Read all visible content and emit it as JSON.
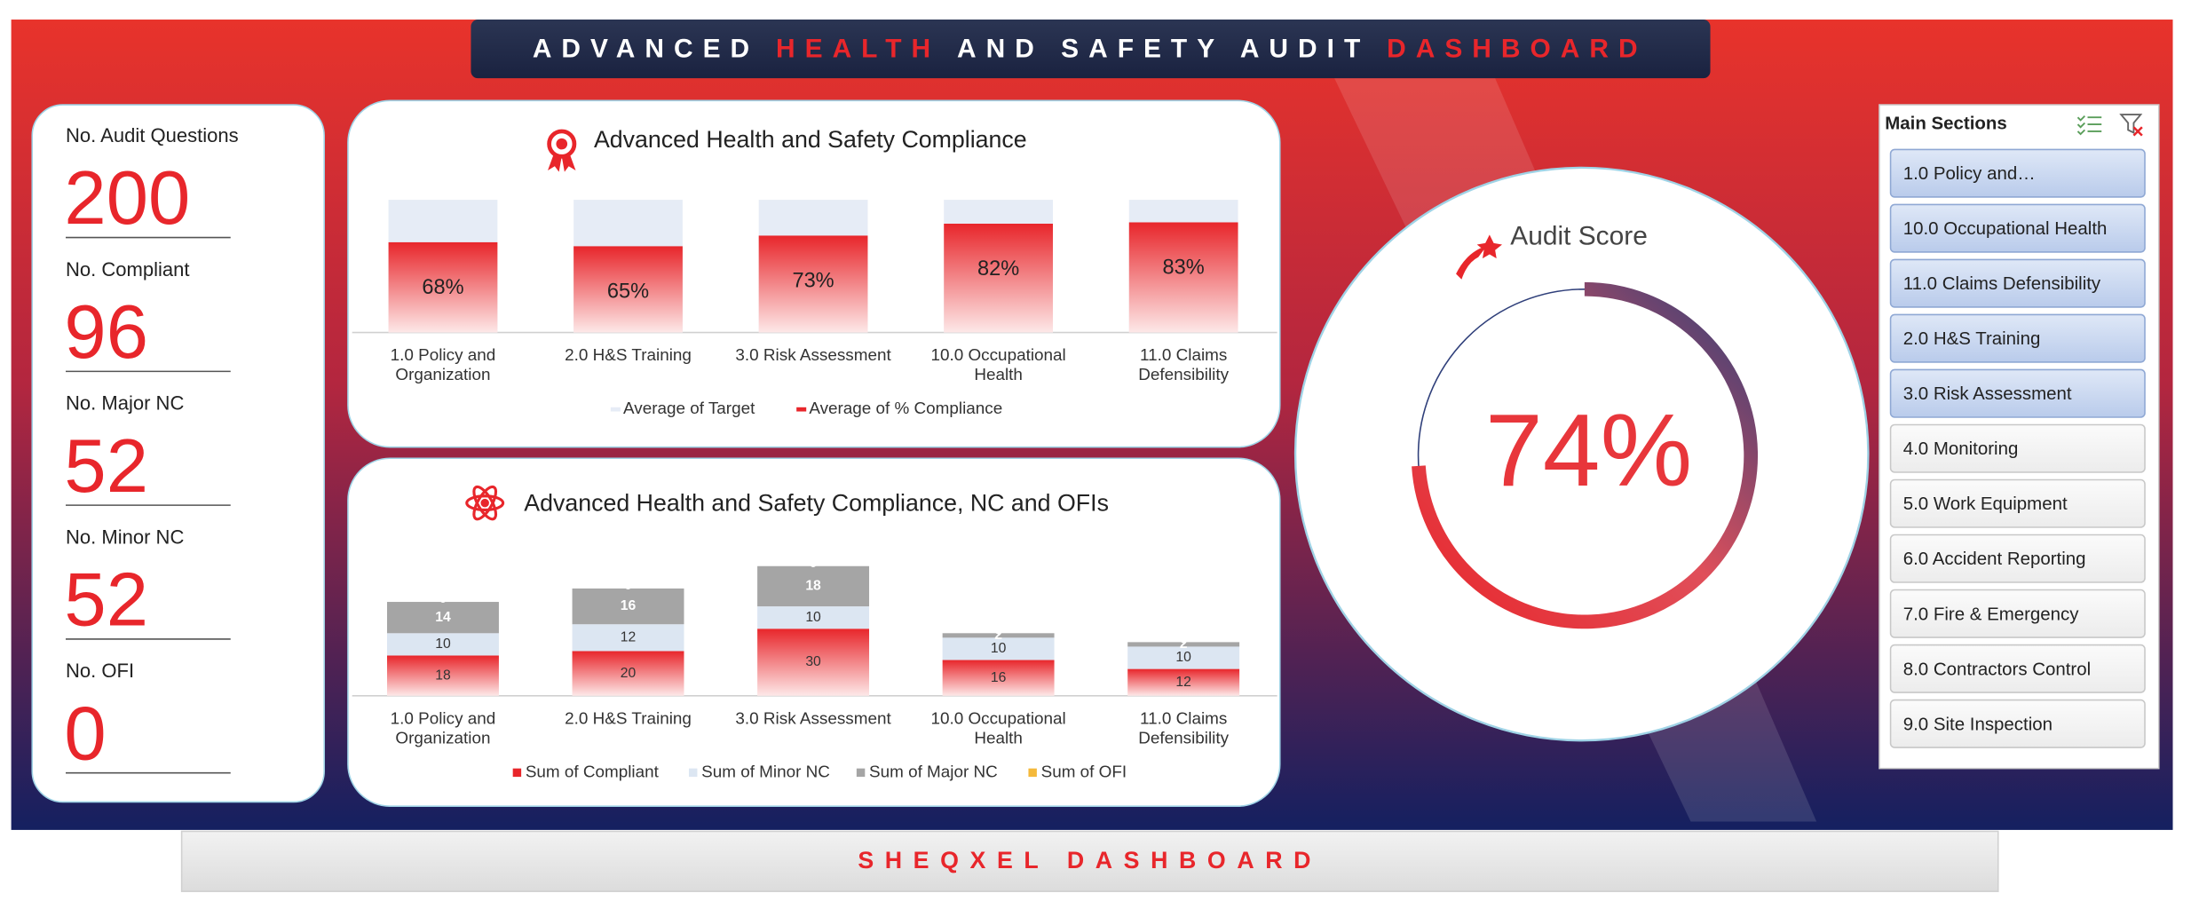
{
  "title_parts": [
    {
      "text": "ADVANCED",
      "highlight": false
    },
    {
      "text": "HEALTH",
      "highlight": true
    },
    {
      "text": "AND SAFETY AUDIT",
      "highlight": false
    },
    {
      "text": "DASHBOARD",
      "highlight": true
    }
  ],
  "kpis": [
    {
      "label": "No. Audit Questions",
      "value": 200
    },
    {
      "label": "No. Compliant",
      "value": 96
    },
    {
      "label": "No. Major NC",
      "value": 52
    },
    {
      "label": "No. Minor NC",
      "value": 52
    },
    {
      "label": "No. OFI",
      "value": 0
    }
  ],
  "chart_data": [
    {
      "type": "bar",
      "title": "Advanced Health and Safety Compliance",
      "categories": [
        "1.0 Policy and Organization",
        "2.0 H&S Training",
        "3.0 Risk Assessment",
        "10.0 Occupational Health",
        "11.0 Claims Defensibility"
      ],
      "ylim": [
        0,
        100
      ],
      "series": [
        {
          "name": "Average of Target",
          "color": "#e6ecf6",
          "values": [
            100,
            100,
            100,
            100,
            100
          ]
        },
        {
          "name": "Average of % Compliance",
          "color": "#e8262b",
          "values": [
            68,
            65,
            73,
            82,
            83
          ],
          "value_labels": [
            "68%",
            "65%",
            "73%",
            "82%",
            "83%"
          ]
        }
      ]
    },
    {
      "type": "stacked_bar",
      "title": "Advanced Health and Safety Compliance, NC and OFIs",
      "categories": [
        "1.0 Policy and Organization",
        "2.0 H&S Training",
        "3.0 Risk Assessment",
        "10.0 Occupational Health",
        "11.0 Claims Defensibility"
      ],
      "ylim": [
        0,
        60
      ],
      "series": [
        {
          "name": "Sum of Compliant",
          "color": "#e8262b",
          "values": [
            18,
            20,
            30,
            16,
            12
          ]
        },
        {
          "name": "Sum of Minor NC",
          "color": "#dce6f2",
          "values": [
            10,
            12,
            10,
            10,
            10
          ]
        },
        {
          "name": "Sum of Major NC",
          "color": "#a5a5a5",
          "values": [
            14,
            16,
            18,
            2,
            2
          ]
        },
        {
          "name": "Sum of OFI",
          "color": "#f4b93b",
          "values": [
            0,
            0,
            0,
            0,
            0
          ]
        }
      ]
    },
    {
      "type": "gauge",
      "title": "Audit Score",
      "ylim": [
        0,
        100
      ],
      "value": 74,
      "value_label": "74%"
    }
  ],
  "slicer": {
    "title": "Main Sections",
    "items": [
      {
        "label": "1.0 Policy and…",
        "selected": true
      },
      {
        "label": "10.0 Occupational Health",
        "selected": true
      },
      {
        "label": "11.0 Claims Defensibility",
        "selected": true
      },
      {
        "label": "2.0 H&S Training",
        "selected": true
      },
      {
        "label": "3.0 Risk Assessment",
        "selected": true
      },
      {
        "label": "4.0 Monitoring",
        "selected": false
      },
      {
        "label": "5.0 Work Equipment",
        "selected": false
      },
      {
        "label": "6.0 Accident Reporting",
        "selected": false
      },
      {
        "label": "7.0 Fire & Emergency",
        "selected": false
      },
      {
        "label": "8.0 Contractors Control",
        "selected": false
      },
      {
        "label": "9.0 Site Inspection",
        "selected": false
      }
    ]
  },
  "footer": "SHEQXEL DASHBOARD"
}
